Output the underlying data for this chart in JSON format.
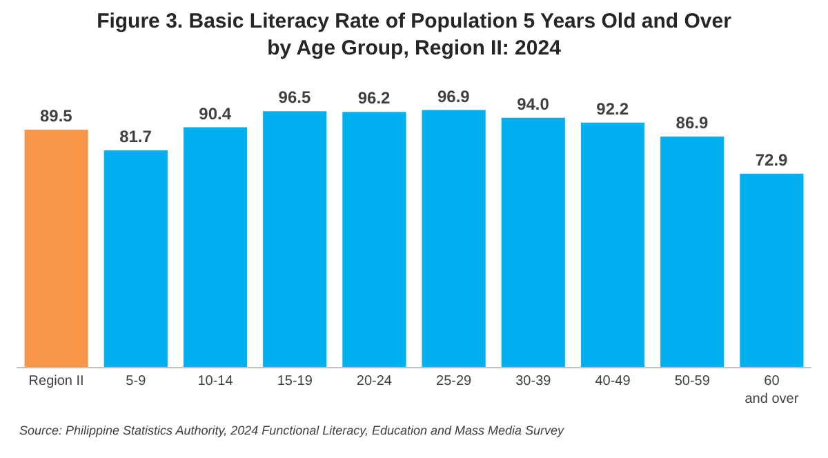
{
  "chart_data": {
    "type": "bar",
    "title": "Figure 3. Basic Literacy Rate of Population 5 Years Old and Over\nby Age Group, Region II: 2024",
    "categories": [
      "Region II",
      "5-9",
      "10-14",
      "15-19",
      "20-24",
      "25-29",
      "30-39",
      "40-49",
      "50-59",
      "60 and over"
    ],
    "values": [
      89.5,
      81.7,
      90.4,
      96.5,
      96.2,
      96.9,
      94.0,
      92.2,
      86.9,
      72.9
    ],
    "value_labels": [
      "89.5",
      "81.7",
      "90.4",
      "96.5",
      "96.2",
      "96.9",
      "94.0",
      "92.2",
      "86.9",
      "72.9"
    ],
    "colors": [
      "#f79646",
      "#00b0f0",
      "#00b0f0",
      "#00b0f0",
      "#00b0f0",
      "#00b0f0",
      "#00b0f0",
      "#00b0f0",
      "#00b0f0",
      "#00b0f0"
    ],
    "tick_labels": "x",
    "annotations": [
      "Source: Philippine Statistics Authority, 2024 Functional Literacy, Education and Mass Media Survey"
    ]
  }
}
